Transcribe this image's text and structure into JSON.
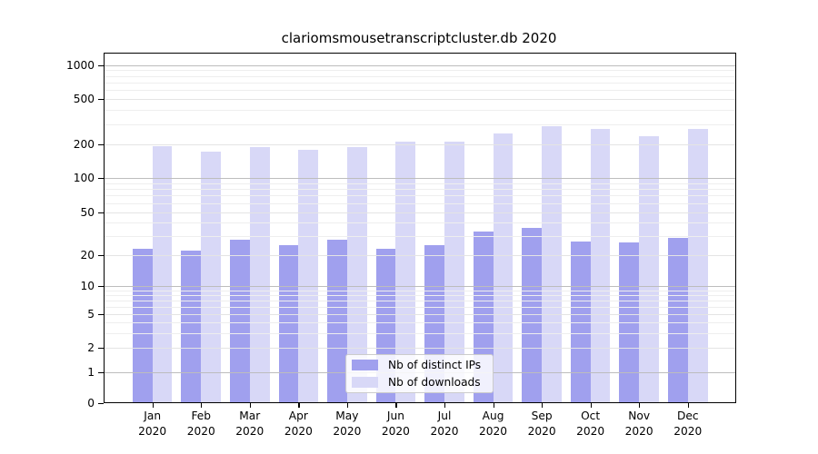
{
  "chart_data": {
    "type": "bar",
    "title": "clariomsmousetranscriptcluster.db 2020",
    "scale": "symlog",
    "grid": true,
    "legend_position": "inside-bottom-center",
    "categories": [
      {
        "label": "Jan",
        "year": "2020"
      },
      {
        "label": "Feb",
        "year": "2020"
      },
      {
        "label": "Mar",
        "year": "2020"
      },
      {
        "label": "Apr",
        "year": "2020"
      },
      {
        "label": "May",
        "year": "2020"
      },
      {
        "label": "Jun",
        "year": "2020"
      },
      {
        "label": "Jul",
        "year": "2020"
      },
      {
        "label": "Aug",
        "year": "2020"
      },
      {
        "label": "Sep",
        "year": "2020"
      },
      {
        "label": "Oct",
        "year": "2020"
      },
      {
        "label": "Nov",
        "year": "2020"
      },
      {
        "label": "Dec",
        "year": "2020"
      }
    ],
    "series": [
      {
        "name": "Nb of distinct IPs",
        "color": "#a0a0ee",
        "values": [
          23,
          22,
          28,
          25,
          28,
          23,
          25,
          33,
          36,
          27,
          26,
          29
        ]
      },
      {
        "name": "Nb of downloads",
        "color": "#d8d8f7",
        "values": [
          191,
          171,
          188,
          178,
          187,
          211,
          211,
          248,
          287,
          272,
          233,
          272
        ]
      }
    ],
    "yticks": [
      0,
      1,
      2,
      5,
      10,
      20,
      50,
      100,
      200,
      500,
      1000
    ],
    "ylim": [
      0,
      1280
    ],
    "xlabel": "",
    "ylabel": "",
    "colors": {
      "background": "#ffffff",
      "axis": "#000000",
      "grid_decade": "#bdbdbd",
      "grid_labeled": "#e4e4e4",
      "grid_minor": "#eeeeee",
      "text": "#000000"
    }
  }
}
